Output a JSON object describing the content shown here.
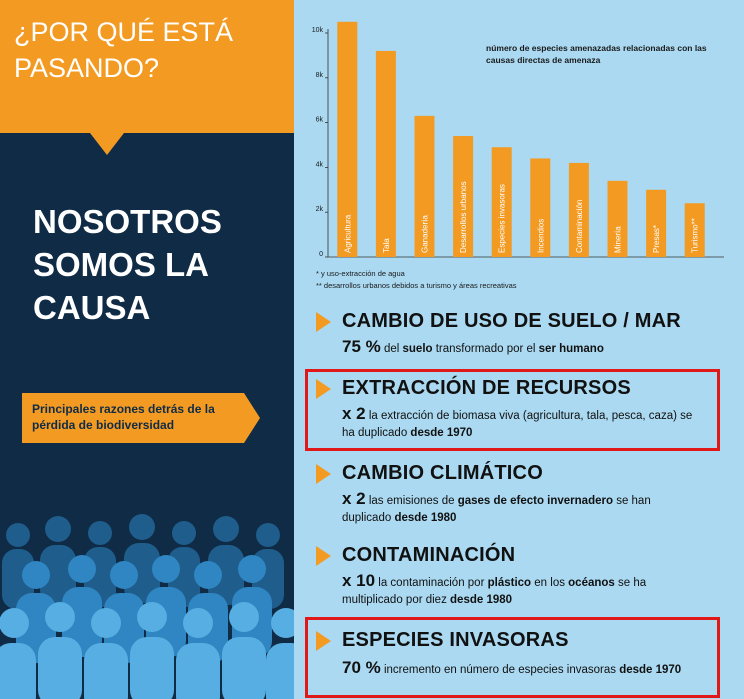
{
  "left": {
    "question": "¿POR QUÉ ESTÁ PASANDO?",
    "headline": "NOSOTROS SOMOS LA CAUSA",
    "reasons_label": "Principales razones detrás de la pérdida de biodiversidad"
  },
  "chart_data": {
    "type": "bar",
    "title": "número de especies amenazadas relacionadas con las causas directas de amenaza",
    "categories": [
      "Agricultura",
      "Tala",
      "Ganadería",
      "Desarrollos urbanos",
      "Especies invasoras",
      "Incendios",
      "Contaminación",
      "Minería",
      "Presas*",
      "Turismo**"
    ],
    "values": [
      10500,
      9200,
      6300,
      5400,
      4900,
      4400,
      4200,
      3400,
      3000,
      2400
    ],
    "yticks": [
      "0",
      "2k",
      "4k",
      "6k",
      "8k",
      "10k"
    ],
    "ylim": [
      0,
      10000
    ],
    "grid": false,
    "notes": [
      "* y uso-extracción de agua",
      "** desarrollos urbanos debidos a turismo y áreas recreativas"
    ]
  },
  "sections": [
    {
      "title": "CAMBIO DE USO DE SUELO / MAR",
      "big": "75 %",
      "parts": [
        " del ",
        "suelo",
        " transformado por el ",
        "ser humano"
      ]
    },
    {
      "title": "EXTRACCIÓN DE RECURSOS",
      "big": "x 2",
      "parts": [
        "  la extracción de biomasa viva (agricultura, tala, pesca, caza) se ha duplicado ",
        "desde 1970"
      ]
    },
    {
      "title": "CAMBIO CLIMÁTICO",
      "big": "x 2",
      "parts": [
        "  las emisiones de ",
        "gases de efecto invernadero",
        " se han duplicado ",
        "desde 1980"
      ]
    },
    {
      "title": "CONTAMINACIÓN",
      "big": "x 10",
      "parts": [
        "  la contaminación por ",
        "plástico",
        " en los ",
        "océanos",
        " se ha multiplicado por diez ",
        "desde 1980"
      ]
    },
    {
      "title": "ESPECIES INVASORAS",
      "big": "70 %",
      "parts": [
        "  incremento en número de especies invasoras ",
        "desde 1970"
      ]
    }
  ],
  "colors": {
    "navy": "#0f2b45",
    "orange": "#f39a22",
    "light_blue": "#aad9f1",
    "highlight": "#e01818"
  }
}
